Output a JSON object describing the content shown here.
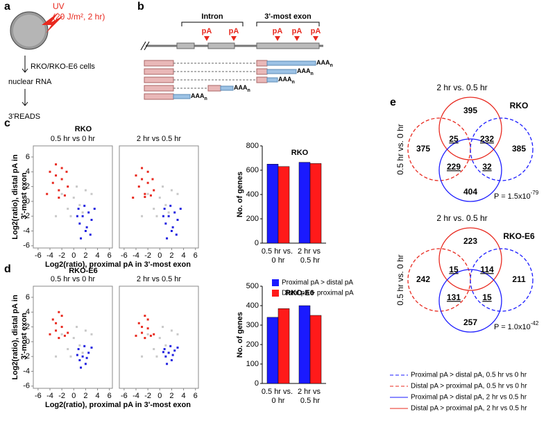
{
  "labels": {
    "a": "a",
    "b": "b",
    "c": "c",
    "d": "d",
    "e": "e"
  },
  "panel_a": {
    "uv": "UV",
    "dose": "(20 J/m², 2 hr)",
    "cells": "RKO/RKO-E6 cells",
    "rna": "nuclear RNA",
    "method": "3'READS"
  },
  "panel_b": {
    "intron": "Intron",
    "exon": "3'-most exon",
    "pa": "pA",
    "poly_a": "AAA",
    "poly_a_sub": "n"
  },
  "panel_c": {
    "title": "RKO"
  },
  "panel_d": {
    "title": "RKO-E6"
  },
  "scatter_axes": {
    "xlabel": "Log2(ratio), proximal pA in 3'-most exon",
    "ylabel": "Log2(ratio), distal pA in 3'-most exon"
  },
  "chart_data": [
    {
      "type": "scatter",
      "title": "0.5 hr vs 0 hr",
      "xlim": [
        -6.8,
        6.5
      ],
      "ylim": [
        -6.3,
        7.5
      ],
      "xticks": [
        -6,
        -4,
        -2,
        0,
        2,
        4,
        6
      ],
      "yticks": [
        -6,
        -4,
        -2,
        0,
        2,
        4,
        6
      ],
      "series": [
        {
          "color": "#c8c8c8",
          "x": [
            -2,
            -1,
            0,
            1,
            2,
            -0.5,
            0.5,
            1.5,
            -3,
            3
          ],
          "values": [
            1,
            -1,
            0.5,
            -0.5,
            1.5,
            -2,
            2,
            -1.5,
            -2,
            1
          ]
        },
        {
          "color": "#e8281e",
          "x": [
            -4,
            -3.5,
            -3,
            -2.5,
            -2,
            -1.5,
            -1,
            -3,
            -2,
            -4.5,
            -2.5,
            -1.2
          ],
          "values": [
            4,
            2.5,
            5,
            1.5,
            3,
            0.8,
            2,
            3.5,
            4.5,
            1,
            0.5,
            4
          ]
        },
        {
          "color": "#2020e0",
          "x": [
            0.8,
            1,
            1.5,
            2,
            2.5,
            3,
            1.2,
            2.2,
            3.5,
            1.8,
            0.6,
            2.8
          ],
          "values": [
            -1,
            -3,
            -2,
            -4,
            -1.5,
            -2.5,
            -5,
            -3.5,
            -1,
            -0.6,
            -2,
            -4.5
          ]
        }
      ]
    },
    {
      "type": "scatter",
      "title": "2 hr vs 0.5 hr",
      "xlim": [
        -6.8,
        6.5
      ],
      "ylim": [
        -6.3,
        7.5
      ],
      "xticks": [
        -6,
        -4,
        -2,
        0,
        2,
        4,
        6
      ],
      "series": [
        {
          "color": "#c8c8c8",
          "x": [
            -2,
            -1,
            0,
            1,
            2,
            -0.5,
            0.5,
            1.5,
            -3,
            3
          ],
          "values": [
            1,
            -1,
            0.5,
            -0.5,
            1.5,
            -2,
            2,
            -1.5,
            -2,
            1
          ]
        },
        {
          "color": "#e8281e",
          "x": [
            -4,
            -3.5,
            -3,
            -2.5,
            -2,
            -1.5,
            -1,
            -3,
            -2,
            -4.5,
            -2.5,
            -1.2
          ],
          "values": [
            3.5,
            2,
            4.5,
            1,
            2.5,
            0.8,
            1.5,
            3,
            4,
            0.5,
            0.6,
            3
          ]
        },
        {
          "color": "#2020e0",
          "x": [
            0.8,
            1,
            1.5,
            2,
            2.5,
            3,
            1.2,
            2.2,
            3.5,
            1.8,
            0.6,
            2.8
          ],
          "values": [
            -1,
            -3,
            -2,
            -4,
            -1.5,
            -2.5,
            -5,
            -3.5,
            -1,
            -0.6,
            -2,
            -4.5
          ]
        }
      ]
    },
    {
      "type": "bar",
      "title": "RKO",
      "ylabel": "No. of genes",
      "categories": [
        "0.5 hr vs. 0 hr",
        "2 hr vs 0.5 hr"
      ],
      "ylim": [
        0,
        800
      ],
      "yticks": [
        0,
        200,
        400,
        600,
        800
      ],
      "series": [
        {
          "name": "Proximal pA > distal pA",
          "color": "#1a1aff",
          "values": [
            650,
            665
          ]
        },
        {
          "name": "Distal pA > proximal pA",
          "color": "#ff1a1a",
          "values": [
            630,
            655
          ]
        }
      ]
    },
    {
      "type": "scatter",
      "title": "0.5 hr vs 0 hr",
      "xlim": [
        -6.8,
        6.5
      ],
      "ylim": [
        -6.3,
        7.5
      ],
      "xticks": [
        -6,
        -4,
        -2,
        0,
        2,
        4,
        6
      ],
      "yticks": [
        -6,
        -4,
        -2,
        0,
        2,
        4,
        6
      ],
      "series": [
        {
          "color": "#c8c8c8",
          "x": [
            -2,
            -1,
            0,
            1,
            2,
            -0.5,
            0.5,
            1.5,
            -3,
            3
          ],
          "values": [
            1,
            -1,
            0.5,
            -0.5,
            1.5,
            -2,
            2,
            -1.5,
            -2,
            1
          ]
        },
        {
          "color": "#e8281e",
          "x": [
            -3.5,
            -3,
            -2.5,
            -2,
            -1.5,
            -1,
            -3,
            -2,
            -4,
            -2.5
          ],
          "values": [
            3,
            1.5,
            4,
            2,
            0.8,
            1.2,
            2.5,
            3.5,
            1,
            0.5
          ]
        },
        {
          "color": "#2020e0",
          "x": [
            0.8,
            1,
            1.5,
            2,
            2.5,
            3,
            1.2,
            2.2,
            1.8,
            0.6
          ],
          "values": [
            -1,
            -2.5,
            -2,
            -3,
            -1.5,
            -0.8,
            -3.5,
            -2.2,
            -0.6,
            -1.8
          ]
        }
      ]
    },
    {
      "type": "scatter",
      "title": "2 hr vs 0.5 hr",
      "xlim": [
        -6.8,
        6.5
      ],
      "ylim": [
        -6.3,
        7.5
      ],
      "xticks": [
        -6,
        -4,
        -2,
        0,
        2,
        4,
        6
      ],
      "series": [
        {
          "color": "#c8c8c8",
          "x": [
            -2,
            -1,
            0,
            1,
            2,
            -0.5,
            0.5,
            1.5,
            -3,
            3
          ],
          "values": [
            1,
            -1,
            0.5,
            -0.5,
            1.5,
            -2,
            2,
            -1.5,
            -2,
            1
          ]
        },
        {
          "color": "#e8281e",
          "x": [
            -3.5,
            -3,
            -2.5,
            -2,
            -1.5,
            -1,
            -3,
            -2,
            -4,
            -2.5
          ],
          "values": [
            2.5,
            1.2,
            3.5,
            1.8,
            0.8,
            1,
            2,
            3,
            0.8,
            0.5
          ]
        },
        {
          "color": "#2020e0",
          "x": [
            0.8,
            1,
            1.5,
            2,
            2.5,
            3,
            1.2,
            2.2,
            1.8,
            0.6
          ],
          "values": [
            -1,
            -2,
            -1.5,
            -2.5,
            -1.2,
            -0.8,
            -3,
            -1.8,
            -0.6,
            -1.4
          ]
        }
      ]
    },
    {
      "type": "bar",
      "title": "RKO-E6",
      "ylabel": "No. of genes",
      "categories": [
        "0.5 hr vs. 0 hr",
        "2 hr vs 0.5 hr"
      ],
      "ylim": [
        0,
        500
      ],
      "yticks": [
        0,
        100,
        200,
        300,
        400,
        500
      ],
      "series": [
        {
          "color": "#1a1aff",
          "values": [
            340,
            400
          ]
        },
        {
          "color": "#ff1a1a",
          "values": [
            385,
            350
          ]
        }
      ]
    }
  ],
  "venn": [
    {
      "top_label": "2 hr vs. 0.5 hr",
      "side_label": "0.5 hr vs. 0 hr",
      "title": "RKO",
      "top": "395",
      "left": "375",
      "right": "385",
      "bottom": "404",
      "top_left": "25",
      "top_right": "232",
      "bottom_left": "229",
      "bottom_right": "32",
      "p_prefix": "P = 1.5x10",
      "p_exponent": "-79"
    },
    {
      "top_label": "2 hr vs. 0.5 hr",
      "side_label": "0.5 hr vs. 0 hr",
      "title": "RKO-E6",
      "top": "223",
      "left": "242",
      "right": "211",
      "bottom": "257",
      "top_left": "15",
      "top_right": "114",
      "bottom_left": "131",
      "bottom_right": "15",
      "p_prefix": "P = 1.0x10",
      "p_exponent": "-42"
    }
  ],
  "venn_legend": [
    "Proximal pA > distal pA, 0.5 hr vs 0 hr",
    "Distal pA > proximal pA, 0.5 hr vs 0 hr",
    "Proximal pA > distal pA, 2 hr vs 0.5 hr",
    "Distal pA > proximal pA, 2 hr vs 0.5 hr"
  ]
}
